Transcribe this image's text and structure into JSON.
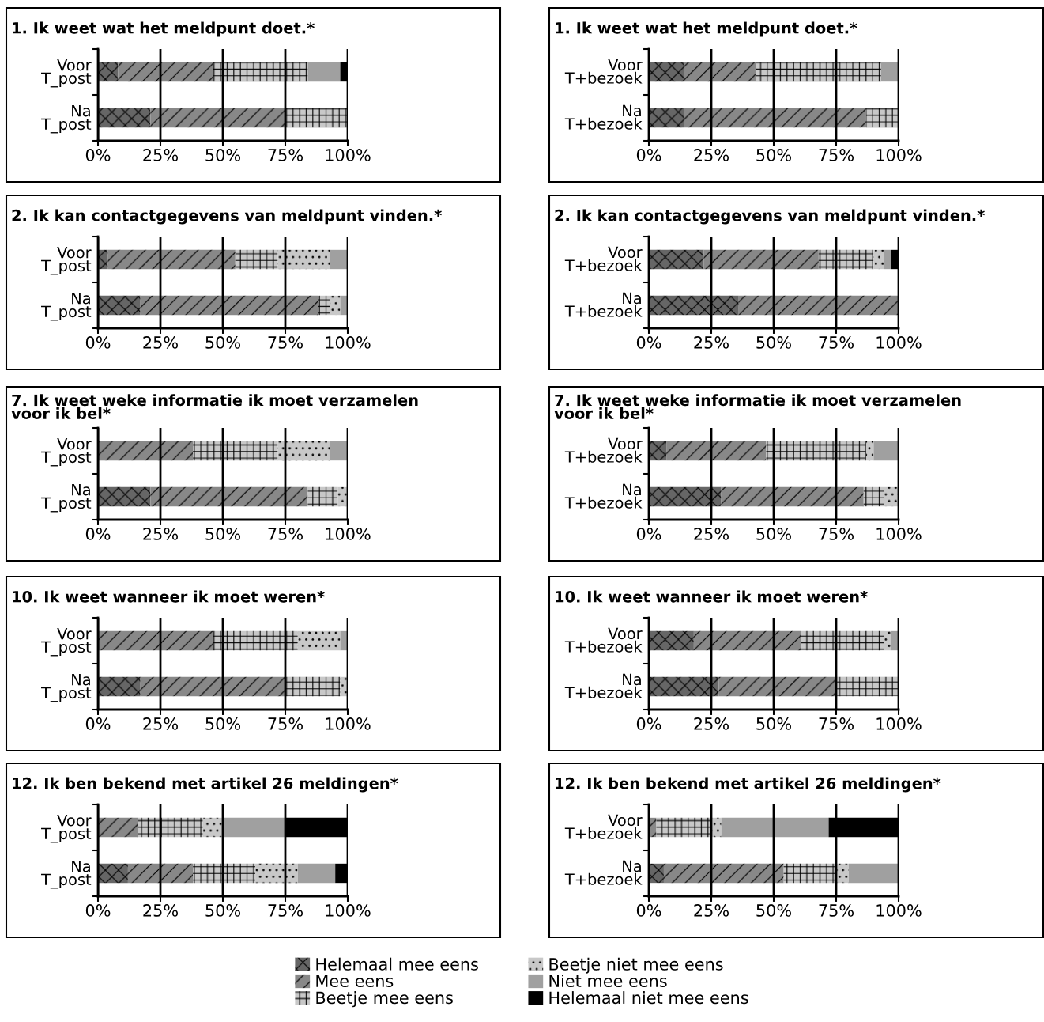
{
  "chart_data": [
    {
      "type": "bar",
      "orientation": "horizontal",
      "stacked": true,
      "title": "1. Ik weet wat het meldpunt doet.*",
      "categories": [
        "Voor\nT_post",
        "Na\nT_post"
      ],
      "xlim": [
        0,
        100
      ],
      "xticks": [
        {
          "value": 0,
          "label": "0%"
        },
        {
          "value": 25,
          "label": "25%"
        },
        {
          "value": 50,
          "label": "50%"
        },
        {
          "value": 75,
          "label": "75%"
        },
        {
          "value": 100,
          "label": "100%"
        }
      ],
      "grid": "x",
      "legend": "bottom",
      "series": [
        {
          "name": "Helemaal mee eens",
          "color": "#666666",
          "values": [
            8,
            21
          ]
        },
        {
          "name": "Mee eens",
          "color": "#888888",
          "values": [
            38,
            54
          ]
        },
        {
          "name": "Beetje mee eens",
          "color": "#c8c8c8",
          "values": [
            38,
            25
          ]
        },
        {
          "name": "Beetje niet mee eens",
          "color": "#c8c8c8",
          "values": [
            0,
            0
          ]
        },
        {
          "name": "Niet mee eens",
          "color": "#a0a0a0",
          "values": [
            13,
            0
          ]
        },
        {
          "name": "Helemaal niet mee eens",
          "color": "#000000",
          "values": [
            3,
            0
          ]
        }
      ]
    },
    {
      "type": "bar",
      "orientation": "horizontal",
      "stacked": true,
      "title": "1. Ik weet wat het meldpunt doet.*",
      "categories": [
        "Voor\nT+bezoek",
        "Na\nT+bezoek"
      ],
      "xlim": [
        0,
        100
      ],
      "xticks": [
        {
          "value": 0,
          "label": "0%"
        },
        {
          "value": 25,
          "label": "25%"
        },
        {
          "value": 50,
          "label": "50%"
        },
        {
          "value": 75,
          "label": "75%"
        },
        {
          "value": 100,
          "label": "100%"
        }
      ],
      "grid": "x",
      "series": [
        {
          "color": "#666666",
          "values": [
            14,
            14
          ]
        },
        {
          "color": "#888888",
          "values": [
            29,
            73
          ]
        },
        {
          "color": "#c8c8c8",
          "values": [
            50,
            13
          ]
        },
        {
          "color": "#c8c8c8",
          "values": [
            0,
            0
          ]
        },
        {
          "color": "#a0a0a0",
          "values": [
            7,
            0
          ]
        },
        {
          "color": "#000000",
          "values": [
            0,
            0
          ]
        }
      ]
    },
    {
      "type": "bar",
      "orientation": "horizontal",
      "stacked": true,
      "title": "2. Ik kan contactgegevens van meldpunt vinden.*",
      "categories": [
        "Voor\nT_post",
        "Na\nT_post"
      ],
      "xlim": [
        0,
        100
      ],
      "xticks": [
        {
          "value": 0,
          "label": "0%"
        },
        {
          "value": 25,
          "label": "25%"
        },
        {
          "value": 50,
          "label": "50%"
        },
        {
          "value": 75,
          "label": "75%"
        },
        {
          "value": 100,
          "label": "100%"
        }
      ],
      "grid": "x",
      "series": [
        {
          "color": "#666666",
          "values": [
            4,
            17
          ]
        },
        {
          "color": "#888888",
          "values": [
            51,
            71
          ]
        },
        {
          "color": "#c8c8c8",
          "values": [
            17,
            5
          ]
        },
        {
          "color": "#c8c8c8",
          "values": [
            21,
            4
          ]
        },
        {
          "color": "#a0a0a0",
          "values": [
            7,
            3
          ]
        },
        {
          "color": "#000000",
          "values": [
            0,
            0
          ]
        }
      ]
    },
    {
      "type": "bar",
      "orientation": "horizontal",
      "stacked": true,
      "title": "2. Ik kan contactgegevens van meldpunt vinden.*",
      "categories": [
        "Voor\nT+bezoek",
        "Na\nT+bezoek"
      ],
      "xlim": [
        0,
        100
      ],
      "xticks": [
        {
          "value": 0,
          "label": "0%"
        },
        {
          "value": 25,
          "label": "25%"
        },
        {
          "value": 50,
          "label": "50%"
        },
        {
          "value": 75,
          "label": "75%"
        },
        {
          "value": 100,
          "label": "100%"
        }
      ],
      "grid": "x",
      "series": [
        {
          "color": "#666666",
          "values": [
            22,
            36
          ]
        },
        {
          "color": "#888888",
          "values": [
            46,
            64
          ]
        },
        {
          "color": "#c8c8c8",
          "values": [
            22,
            0
          ]
        },
        {
          "color": "#c8c8c8",
          "values": [
            4,
            0
          ]
        },
        {
          "color": "#a0a0a0",
          "values": [
            3,
            0
          ]
        },
        {
          "color": "#000000",
          "values": [
            3,
            0
          ]
        }
      ]
    },
    {
      "type": "bar",
      "orientation": "horizontal",
      "stacked": true,
      "title": "7. Ik weet weke informatie ik moet verzamelen\nvoor ik bel*",
      "categories": [
        "Voor\nT_post",
        "Na\nT_post"
      ],
      "xlim": [
        0,
        100
      ],
      "xticks": [
        {
          "value": 0,
          "label": "0%"
        },
        {
          "value": 25,
          "label": "25%"
        },
        {
          "value": 50,
          "label": "50%"
        },
        {
          "value": 75,
          "label": "75%"
        },
        {
          "value": 100,
          "label": "100%"
        }
      ],
      "grid": "x",
      "series": [
        {
          "color": "#666666",
          "values": [
            0,
            21
          ]
        },
        {
          "color": "#888888",
          "values": [
            38,
            63
          ]
        },
        {
          "color": "#c8c8c8",
          "values": [
            34,
            12
          ]
        },
        {
          "color": "#c8c8c8",
          "values": [
            21,
            4
          ]
        },
        {
          "color": "#a0a0a0",
          "values": [
            7,
            0
          ]
        },
        {
          "color": "#000000",
          "values": [
            0,
            0
          ]
        }
      ]
    },
    {
      "type": "bar",
      "orientation": "horizontal",
      "stacked": true,
      "title": "7. Ik weet weke informatie ik moet verzamelen\nvoor ik bel*",
      "categories": [
        "Voor\nT+bezoek",
        "Na\nT+bezoek"
      ],
      "xlim": [
        0,
        100
      ],
      "xticks": [
        {
          "value": 0,
          "label": "0%"
        },
        {
          "value": 25,
          "label": "25%"
        },
        {
          "value": 50,
          "label": "50%"
        },
        {
          "value": 75,
          "label": "75%"
        },
        {
          "value": 100,
          "label": "100%"
        }
      ],
      "grid": "x",
      "series": [
        {
          "color": "#666666",
          "values": [
            7,
            29
          ]
        },
        {
          "color": "#888888",
          "values": [
            40,
            57
          ]
        },
        {
          "color": "#c8c8c8",
          "values": [
            40,
            8
          ]
        },
        {
          "color": "#c8c8c8",
          "values": [
            3,
            6
          ]
        },
        {
          "color": "#a0a0a0",
          "values": [
            10,
            0
          ]
        },
        {
          "color": "#000000",
          "values": [
            0,
            0
          ]
        }
      ]
    },
    {
      "type": "bar",
      "orientation": "horizontal",
      "stacked": true,
      "title": "10. Ik weet wanneer ik moet weren*",
      "categories": [
        "Voor\nT_post",
        "Na\nT_post"
      ],
      "xlim": [
        0,
        100
      ],
      "xticks": [
        {
          "value": 0,
          "label": "0%"
        },
        {
          "value": 25,
          "label": "25%"
        },
        {
          "value": 50,
          "label": "50%"
        },
        {
          "value": 75,
          "label": "75%"
        },
        {
          "value": 100,
          "label": "100%"
        }
      ],
      "grid": "x",
      "series": [
        {
          "color": "#666666",
          "values": [
            0,
            17
          ]
        },
        {
          "color": "#888888",
          "values": [
            46,
            58
          ]
        },
        {
          "color": "#c8c8c8",
          "values": [
            34,
            22
          ]
        },
        {
          "color": "#c8c8c8",
          "values": [
            17,
            3
          ]
        },
        {
          "color": "#a0a0a0",
          "values": [
            3,
            0
          ]
        },
        {
          "color": "#000000",
          "values": [
            0,
            0
          ]
        }
      ]
    },
    {
      "type": "bar",
      "orientation": "horizontal",
      "stacked": true,
      "title": "10. Ik weet wanneer ik moet weren*",
      "categories": [
        "Voor\nT+bezoek",
        "Na\nT+bezoek"
      ],
      "xlim": [
        0,
        100
      ],
      "xticks": [
        {
          "value": 0,
          "label": "0%"
        },
        {
          "value": 25,
          "label": "25%"
        },
        {
          "value": 50,
          "label": "50%"
        },
        {
          "value": 75,
          "label": "75%"
        },
        {
          "value": 100,
          "label": "100%"
        }
      ],
      "grid": "x",
      "series": [
        {
          "color": "#666666",
          "values": [
            18,
            28
          ]
        },
        {
          "color": "#888888",
          "values": [
            43,
            47
          ]
        },
        {
          "color": "#c8c8c8",
          "values": [
            33,
            25
          ]
        },
        {
          "color": "#c8c8c8",
          "values": [
            3,
            0
          ]
        },
        {
          "color": "#a0a0a0",
          "values": [
            3,
            0
          ]
        },
        {
          "color": "#000000",
          "values": [
            0,
            0
          ]
        }
      ]
    },
    {
      "type": "bar",
      "orientation": "horizontal",
      "stacked": true,
      "title": "12. Ik ben bekend met artikel 26 meldingen*",
      "categories": [
        "Voor\nT_post",
        "Na\nT_post"
      ],
      "xlim": [
        0,
        100
      ],
      "xticks": [
        {
          "value": 0,
          "label": "0%"
        },
        {
          "value": 25,
          "label": "25%"
        },
        {
          "value": 50,
          "label": "50%"
        },
        {
          "value": 75,
          "label": "75%"
        },
        {
          "value": 100,
          "label": "100%"
        }
      ],
      "grid": "x",
      "series": [
        {
          "color": "#666666",
          "values": [
            0,
            12
          ]
        },
        {
          "color": "#888888",
          "values": [
            16,
            26
          ]
        },
        {
          "color": "#c8c8c8",
          "values": [
            26,
            25
          ]
        },
        {
          "color": "#c8c8c8",
          "values": [
            8,
            17
          ]
        },
        {
          "color": "#a0a0a0",
          "values": [
            25,
            15
          ]
        },
        {
          "color": "#000000",
          "values": [
            25,
            5
          ]
        }
      ]
    },
    {
      "type": "bar",
      "orientation": "horizontal",
      "stacked": true,
      "title": "12. Ik ben bekend met artikel 26 meldingen*",
      "categories": [
        "Voor\nT+bezoek",
        "Na\nT+bezoek"
      ],
      "xlim": [
        0,
        100
      ],
      "xticks": [
        {
          "value": 0,
          "label": "0%"
        },
        {
          "value": 25,
          "label": "25%"
        },
        {
          "value": 50,
          "label": "50%"
        },
        {
          "value": 75,
          "label": "75%"
        },
        {
          "value": 100,
          "label": "100%"
        }
      ],
      "grid": "x",
      "series": [
        {
          "color": "#666666",
          "values": [
            0,
            6
          ]
        },
        {
          "color": "#888888",
          "values": [
            3,
            48
          ]
        },
        {
          "color": "#c8c8c8",
          "values": [
            22,
            21
          ]
        },
        {
          "color": "#c8c8c8",
          "values": [
            4,
            5
          ]
        },
        {
          "color": "#a0a0a0",
          "values": [
            43,
            20
          ]
        },
        {
          "color": "#000000",
          "values": [
            28,
            0
          ]
        }
      ]
    }
  ]
}
